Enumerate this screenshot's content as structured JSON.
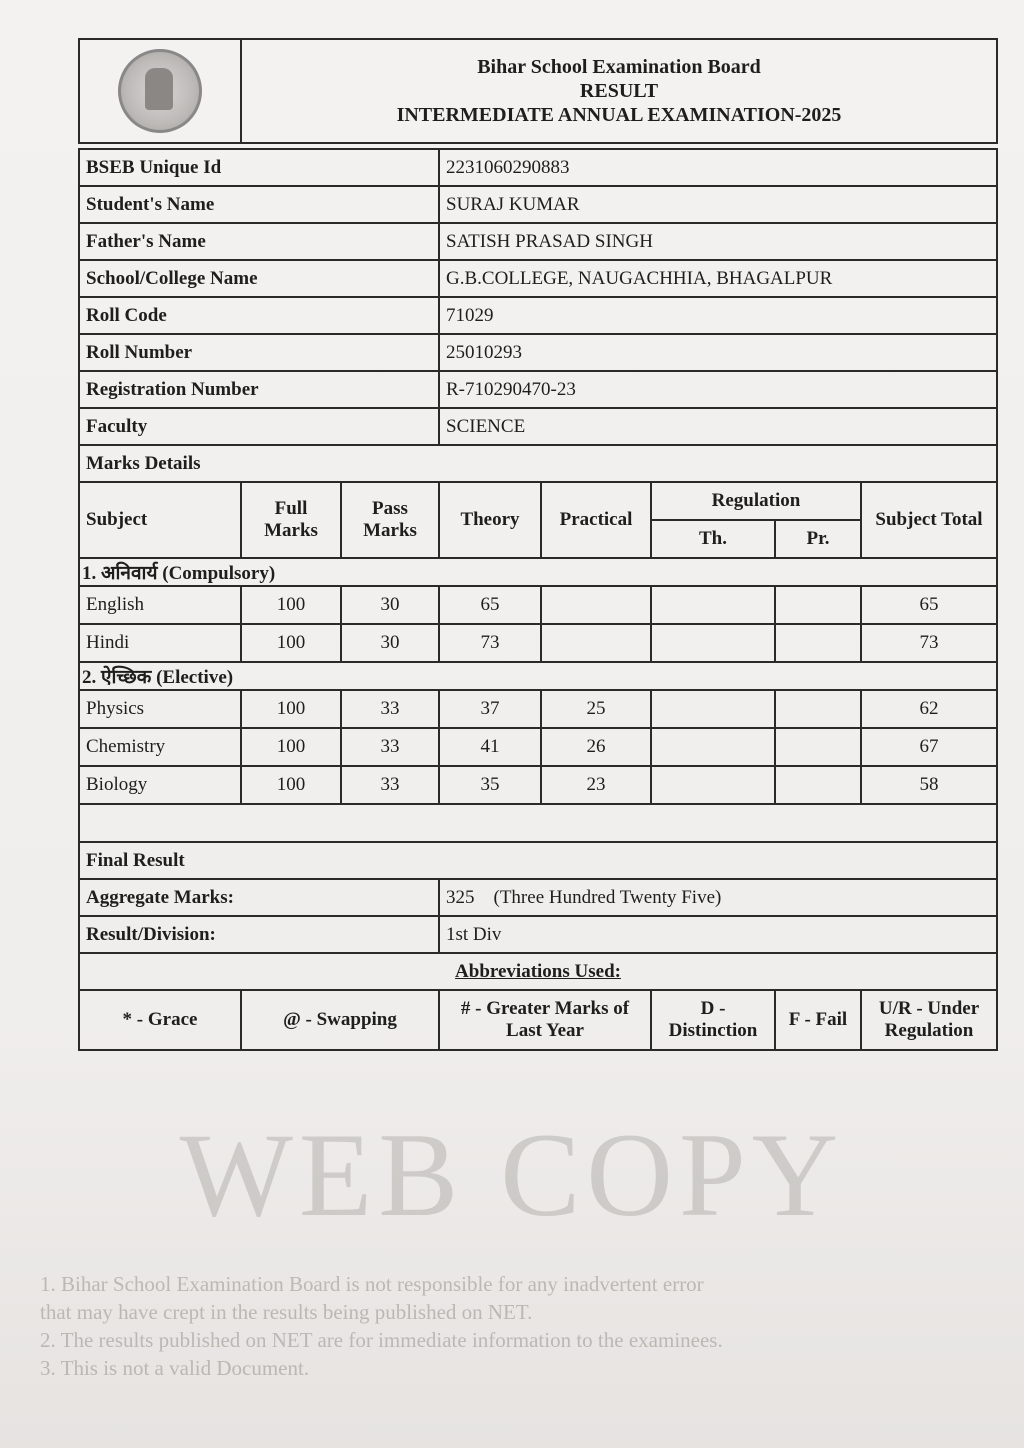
{
  "header": {
    "board": "Bihar School Examination Board",
    "result": "RESULT",
    "exam": "INTERMEDIATE ANNUAL EXAMINATION-2025",
    "logo": "bseb-seal"
  },
  "info": [
    {
      "label": "BSEB Unique Id",
      "value": "2231060290883"
    },
    {
      "label": "Student's Name",
      "value": "SURAJ KUMAR"
    },
    {
      "label": "Father's Name",
      "value": "SATISH PRASAD SINGH"
    },
    {
      "label": "School/College Name",
      "value": "G.B.COLLEGE, NAUGACHHIA, BHAGALPUR"
    },
    {
      "label": "Roll Code",
      "value": "71029"
    },
    {
      "label": "Roll Number",
      "value": "25010293"
    },
    {
      "label": "Registration Number",
      "value": "R-710290470-23"
    },
    {
      "label": "Faculty",
      "value": "SCIENCE"
    }
  ],
  "marks": {
    "title": "Marks Details",
    "columns": {
      "subject": "Subject",
      "full": "Full Marks",
      "pass": "Pass Marks",
      "theory": "Theory",
      "practical": "Practical",
      "regulation": "Regulation",
      "reg_th": "Th.",
      "reg_pr": "Pr.",
      "total": "Subject Total"
    },
    "sections": [
      {
        "title": "1. अनिवार्य (Compulsory)",
        "rows": [
          {
            "subject": "English",
            "full": "100",
            "pass": "30",
            "theory": "65",
            "practical": "",
            "reg_th": "",
            "reg_pr": "",
            "total": "65"
          },
          {
            "subject": "Hindi",
            "full": "100",
            "pass": "30",
            "theory": "73",
            "practical": "",
            "reg_th": "",
            "reg_pr": "",
            "total": "73"
          }
        ]
      },
      {
        "title": "2. ऐच्छिक (Elective)",
        "rows": [
          {
            "subject": "Physics",
            "full": "100",
            "pass": "33",
            "theory": "37",
            "practical": "25",
            "reg_th": "",
            "reg_pr": "",
            "total": "62"
          },
          {
            "subject": "Chemistry",
            "full": "100",
            "pass": "33",
            "theory": "41",
            "practical": "26",
            "reg_th": "",
            "reg_pr": "",
            "total": "67"
          },
          {
            "subject": "Biology",
            "full": "100",
            "pass": "33",
            "theory": "35",
            "practical": "23",
            "reg_th": "",
            "reg_pr": "",
            "total": "58"
          }
        ]
      }
    ]
  },
  "final": {
    "title": "Final Result",
    "aggregate_label": "Aggregate Marks:",
    "aggregate_value": "325",
    "aggregate_words": "(Three Hundred Twenty Five)",
    "division_label": "Result/Division:",
    "division_value": "1st Div"
  },
  "abbreviations": {
    "title": "Abbreviations Used:",
    "items": [
      "* - Grace",
      "@ - Swapping",
      "# - Greater Marks of Last Year",
      "D - Distinction",
      "F - Fail",
      "U/R - Under Regulation"
    ]
  },
  "watermark": {
    "big": "WEB COPY",
    "lines": [
      "1. Bihar School Examination Board is not responsible for any inadvertent error",
      "that may have crept in the results being published on NET.",
      "2. The results published on NET are for immediate information to the examinees.",
      "3. This is not a valid Document."
    ]
  }
}
